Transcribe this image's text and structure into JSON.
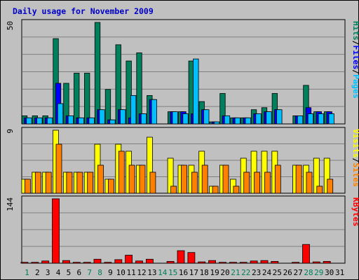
{
  "header": {
    "title": "Daily usage for November 2009"
  },
  "colors": {
    "hits": "#00805c",
    "files": "#0000ff",
    "pages": "#00c0ff",
    "visits": "#ffff00",
    "sites": "#ff8000",
    "kbytes": "#ff0000",
    "weekend_day_label": "#00805c",
    "weekday_label": "#000000"
  },
  "chart_data": [
    {
      "type": "bar",
      "title": "Daily usage for November 2009",
      "panel": "hits-files-pages",
      "ylabel_parts": [
        "Pages",
        "/",
        "Files",
        "/",
        "Hits"
      ],
      "ytick": "50",
      "ylim": [
        0,
        50
      ],
      "grid": true,
      "categories": [
        "1",
        "2",
        "3",
        "4",
        "5",
        "6",
        "7",
        "8",
        "9",
        "10",
        "11",
        "12",
        "13",
        "14",
        "15",
        "16",
        "17",
        "18",
        "19",
        "20",
        "21",
        "22",
        "23",
        "24",
        "25",
        "26",
        "27",
        "28",
        "29",
        "30",
        "31"
      ],
      "series": [
        {
          "name": "Hits",
          "values": [
            4,
            4,
            4,
            42,
            20,
            25,
            25,
            50,
            17,
            39,
            31,
            35,
            14,
            0,
            6,
            6,
            31,
            11,
            1,
            15,
            3,
            3,
            7,
            8,
            15,
            0,
            4,
            19,
            6,
            6,
            0
          ]
        },
        {
          "name": "Files",
          "values": [
            3,
            3,
            3,
            20,
            4,
            3,
            3,
            7,
            2,
            7,
            3,
            5,
            12,
            0,
            6,
            6,
            5,
            7,
            1,
            4,
            3,
            3,
            5,
            6,
            7,
            0,
            4,
            8,
            6,
            6,
            0
          ]
        },
        {
          "name": "Pages",
          "values": [
            3,
            3,
            3,
            10,
            4,
            3,
            3,
            7,
            2,
            7,
            14,
            5,
            12,
            0,
            6,
            5,
            32,
            7,
            1,
            4,
            3,
            3,
            5,
            6,
            7,
            0,
            4,
            5,
            5,
            5,
            0
          ]
        }
      ]
    },
    {
      "type": "bar",
      "panel": "visits-sites",
      "ylabel_parts": [
        "Sites",
        "/",
        "Visits"
      ],
      "ytick": "9",
      "ylim": [
        0,
        9
      ],
      "grid": true,
      "categories": [
        "1",
        "2",
        "3",
        "4",
        "5",
        "6",
        "7",
        "8",
        "9",
        "10",
        "11",
        "12",
        "13",
        "14",
        "15",
        "16",
        "17",
        "18",
        "19",
        "20",
        "21",
        "22",
        "23",
        "24",
        "25",
        "26",
        "27",
        "28",
        "29",
        "30",
        "31"
      ],
      "series": [
        {
          "name": "Visits",
          "values": [
            2,
            3,
            3,
            9,
            3,
            3,
            3,
            7,
            2,
            7,
            6,
            4,
            8,
            0,
            5,
            4,
            4,
            6,
            1,
            4,
            2,
            5,
            6,
            6,
            6,
            0,
            4,
            4,
            5,
            5,
            0
          ]
        },
        {
          "name": "Sites",
          "values": [
            2,
            3,
            3,
            7,
            3,
            3,
            3,
            4,
            2,
            6,
            4,
            4,
            3,
            0,
            1,
            4,
            3,
            4,
            1,
            4,
            1,
            3,
            3,
            3,
            4,
            0,
            4,
            3,
            1,
            2,
            0
          ]
        }
      ]
    },
    {
      "type": "bar",
      "panel": "kbytes",
      "ylabel_parts": [
        "KBytes"
      ],
      "ytick": "144",
      "ylim": [
        0,
        144
      ],
      "grid": true,
      "categories": [
        "1",
        "2",
        "3",
        "4",
        "5",
        "6",
        "7",
        "8",
        "9",
        "10",
        "11",
        "12",
        "13",
        "14",
        "15",
        "16",
        "17",
        "18",
        "19",
        "20",
        "21",
        "22",
        "23",
        "24",
        "25",
        "26",
        "27",
        "28",
        "29",
        "30",
        "31"
      ],
      "series": [
        {
          "name": "KBytes",
          "values": [
            2,
            2,
            5,
            144,
            6,
            2,
            2,
            9,
            2,
            8,
            18,
            5,
            9,
            0,
            4,
            28,
            24,
            3,
            6,
            2,
            2,
            2,
            5,
            6,
            4,
            0,
            2,
            42,
            3,
            4,
            0
          ]
        }
      ]
    }
  ],
  "x_axis": {
    "day_labels": [
      "1",
      "2",
      "3",
      "4",
      "5",
      "6",
      "7",
      "8",
      "9",
      "10",
      "11",
      "12",
      "13",
      "14",
      "15",
      "16",
      "17",
      "18",
      "19",
      "20",
      "21",
      "22",
      "23",
      "24",
      "25",
      "26",
      "27",
      "28",
      "29",
      "30",
      "31"
    ],
    "weekend_days": [
      1,
      7,
      8,
      14,
      15,
      21,
      22,
      28,
      29
    ]
  }
}
